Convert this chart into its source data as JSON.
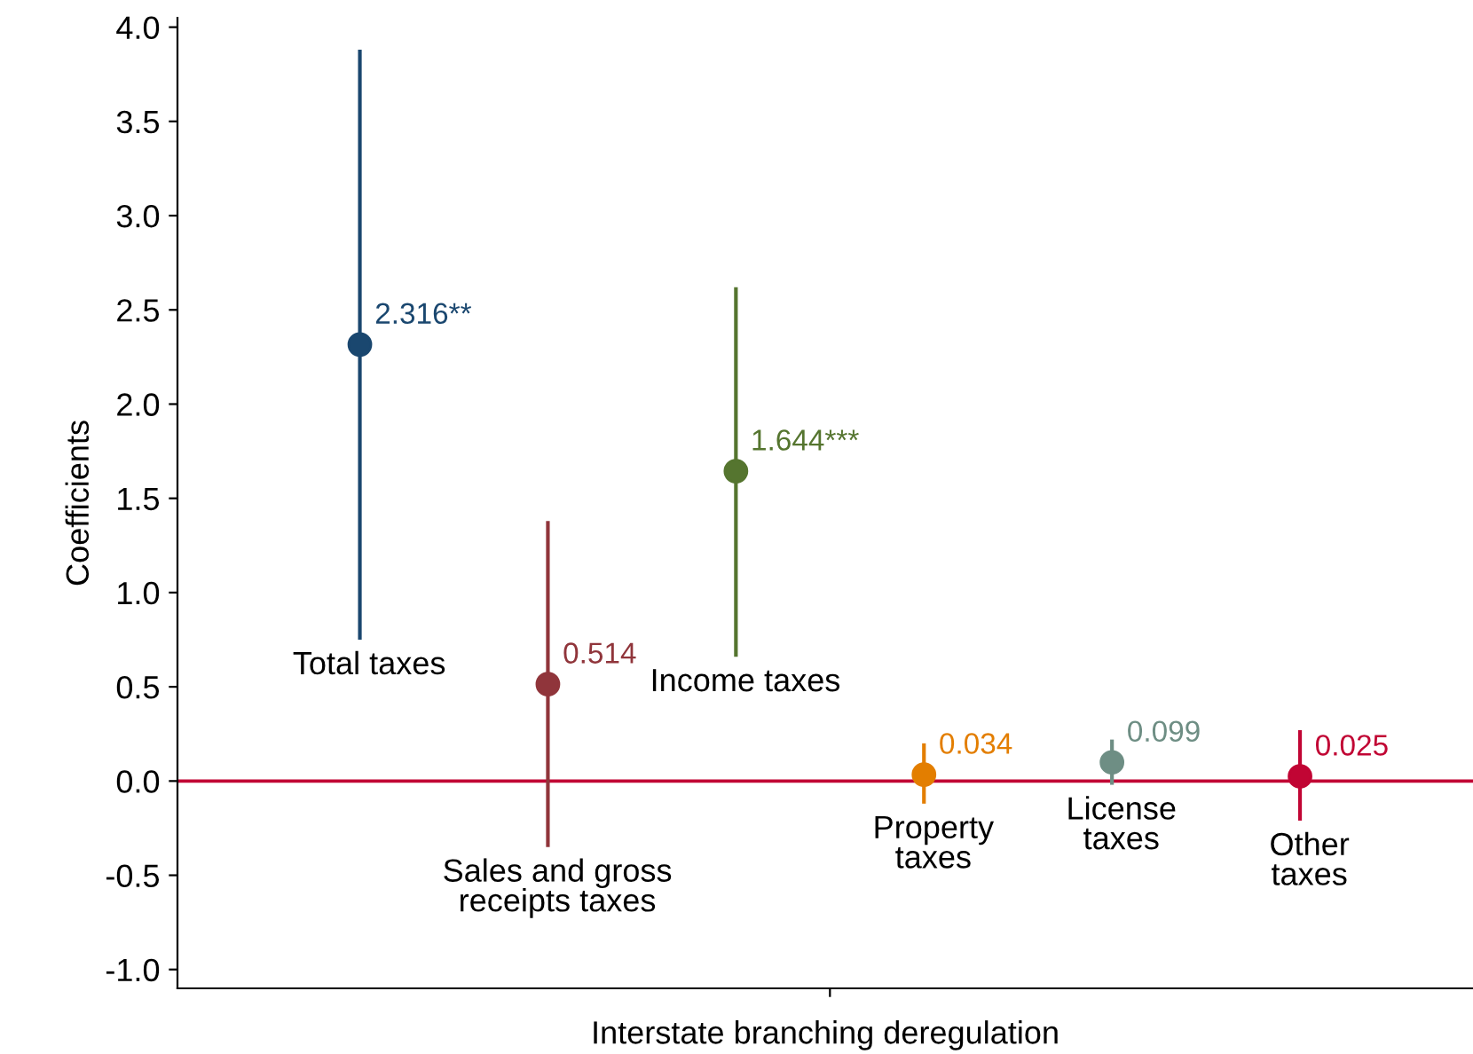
{
  "chart_data": {
    "type": "scatter",
    "xlabel": "Interstate branching deregulation",
    "ylabel": "Coefficients",
    "categories": [
      null,
      null,
      null,
      null,
      null,
      null
    ],
    "ylim": [
      -1.1,
      4.05
    ],
    "yticks": [
      {
        "value": 4.0,
        "label": "4.0"
      },
      {
        "value": 3.5,
        "label": "3.5"
      },
      {
        "value": 3.0,
        "label": "3.0"
      },
      {
        "value": 2.5,
        "label": "2.5"
      },
      {
        "value": 2.0,
        "label": "2.0"
      },
      {
        "value": 1.5,
        "label": "1.5"
      },
      {
        "value": 1.0,
        "label": "1.0"
      },
      {
        "value": 0.5,
        "label": "0.5"
      },
      {
        "value": 0.0,
        "label": "0.0"
      },
      {
        "value": -0.5,
        "label": "-0.5"
      },
      {
        "value": -1.0,
        "label": "-1.0"
      }
    ],
    "marker": "circle",
    "grid": false,
    "legend": false,
    "ref_lines": [
      {
        "axis": "y",
        "value": 0,
        "color": "#c10534",
        "line_style": "solid"
      }
    ],
    "annotations": [
      "Total taxes",
      "Sales and gross\nreceipts taxes",
      "Income taxes",
      "Property\ntaxes",
      "License\ntaxes",
      "Other\ntaxes"
    ],
    "series": [
      {
        "color": "#1a476f",
        "values": [
          2.316,
          null,
          null,
          null,
          null,
          null
        ],
        "errors": [
          [
            0.75,
            3.88
          ],
          null,
          null,
          null,
          null,
          null
        ],
        "value_labels": [
          "2.316**",
          null,
          null,
          null,
          null,
          null
        ]
      },
      {
        "color": "#90353b",
        "values": [
          null,
          0.514,
          null,
          null,
          null,
          null
        ],
        "errors": [
          null,
          [
            -0.35,
            1.38
          ],
          null,
          null,
          null,
          null
        ],
        "value_labels": [
          null,
          "0.514",
          null,
          null,
          null,
          null
        ]
      },
      {
        "color": "#55752f",
        "values": [
          null,
          null,
          1.644,
          null,
          null,
          null
        ],
        "errors": [
          null,
          null,
          [
            0.66,
            2.62
          ],
          null,
          null,
          null
        ],
        "value_labels": [
          null,
          null,
          "1.644***",
          null,
          null,
          null
        ]
      },
      {
        "color": "#e37e00",
        "values": [
          null,
          null,
          null,
          0.034,
          null,
          null
        ],
        "errors": [
          null,
          null,
          null,
          [
            -0.12,
            0.2
          ],
          null,
          null
        ],
        "value_labels": [
          null,
          null,
          null,
          "0.034",
          null,
          null
        ]
      },
      {
        "color": "#6e8e84",
        "values": [
          null,
          null,
          null,
          null,
          0.099,
          null
        ],
        "errors": [
          null,
          null,
          null,
          null,
          [
            -0.02,
            0.22
          ],
          null
        ],
        "value_labels": [
          null,
          null,
          null,
          null,
          "0.099",
          null
        ]
      },
      {
        "color": "#c10534",
        "values": [
          null,
          null,
          null,
          null,
          null,
          0.025
        ],
        "errors": [
          null,
          null,
          null,
          null,
          null,
          [
            -0.21,
            0.27
          ]
        ],
        "value_labels": [
          null,
          null,
          null,
          null,
          null,
          "0.025"
        ]
      }
    ]
  }
}
